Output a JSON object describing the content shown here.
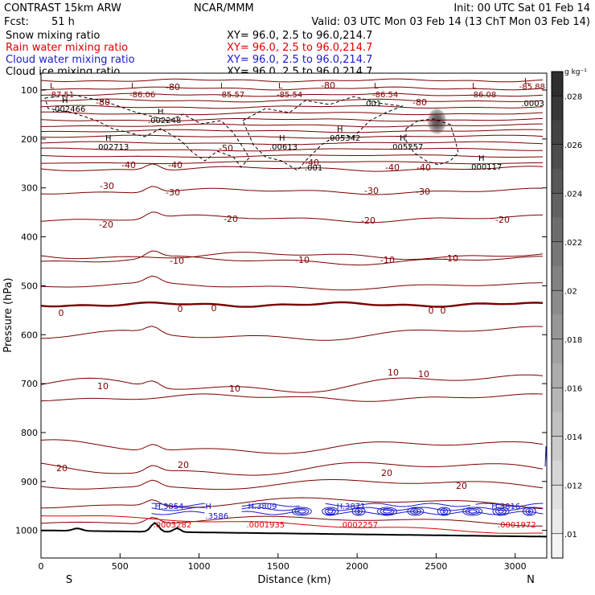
{
  "header": {
    "model": "CONTRAST 15km ARW",
    "center": "NCAR/MMM",
    "init": "Init: 00 UTC Sat 01 Feb 14",
    "fcst_label": "Fcst:",
    "fcst_value": "51 h",
    "valid": "Valid: 03 UTC Mon 03 Feb 14 (13 ChT Mon 03 Feb 14)"
  },
  "fields": [
    {
      "name": "Snow mixing ratio",
      "xy": "XY=  96.0,  2.5 to  96.0,214.7",
      "color": "#000000"
    },
    {
      "name": "Rain water mixing ratio",
      "xy": "XY=  96.0,  2.5 to  96.0,214.7",
      "color": "#e00000"
    },
    {
      "name": "Cloud water mixing ratio",
      "xy": "XY=  96.0,  2.5 to  96.0,214.7",
      "color": "#1a1acc"
    },
    {
      "name": "Cloud ice mixing ratio",
      "xy": "XY=  96.0,  2.5 to  96.0,214.7",
      "color": "#000000"
    }
  ],
  "colors": {
    "temperature": "#7a0000",
    "zero_isotherm": "#7a0000",
    "rain": "#e00000",
    "cloud_water": "#1a1acc",
    "terrain": "#000000"
  },
  "chart_data": {
    "type": "cross-section",
    "xlabel": "Distance (km)",
    "ylabel": "Pressure (hPa)",
    "xlim": [
      0,
      3200
    ],
    "ylim": [
      1050,
      60
    ],
    "xticks": [
      0,
      500,
      1000,
      1500,
      2000,
      2500,
      3000
    ],
    "yticks": [
      100,
      200,
      300,
      400,
      500,
      600,
      700,
      800,
      900,
      1000
    ],
    "endpoints": {
      "left": "S",
      "right": "N"
    },
    "colorbar": {
      "units": "g kg⁻¹",
      "ticks": [
        ".01",
        ".012",
        ".014",
        ".016",
        ".018",
        ".02",
        ".022",
        ".024",
        ".026",
        ".028"
      ],
      "range": [
        0.009,
        0.029
      ]
    },
    "isotherm_labels": [
      "-80",
      "-50",
      "-40",
      "-30",
      "-20",
      "-10",
      "0",
      "10",
      "20"
    ],
    "snow_max": [
      "H .002466",
      "H .002248",
      "H .002713",
      "H .00613",
      "H .005342",
      "H .005257",
      "H .000117",
      ".001",
      ".001",
      ".0003"
    ],
    "temperature_minima": [
      "L -87.51",
      "L -86.06",
      "L -85.57",
      "L -85.54",
      "L -86.54",
      "L -86.08",
      "L -85.88"
    ],
    "cloud_water_max": [
      {
        "x": 720,
        "label": "H.3854"
      },
      {
        "x": 1040,
        "label": "H .3586"
      },
      {
        "x": 1310,
        "label": "H.3809"
      },
      {
        "x": 1870,
        "label": "H.3871"
      },
      {
        "x": 2850,
        "label": "H.3816"
      }
    ],
    "rain_max": [
      {
        "x": 730,
        "label": ".0003282"
      },
      {
        "x": 1320,
        "label": ".0001935"
      },
      {
        "x": 1910,
        "label": ".0002257"
      },
      {
        "x": 2910,
        "label": ".0001972"
      }
    ],
    "ice_max": {
      "x": 2500,
      "p": 210,
      "value": 0.028
    }
  }
}
